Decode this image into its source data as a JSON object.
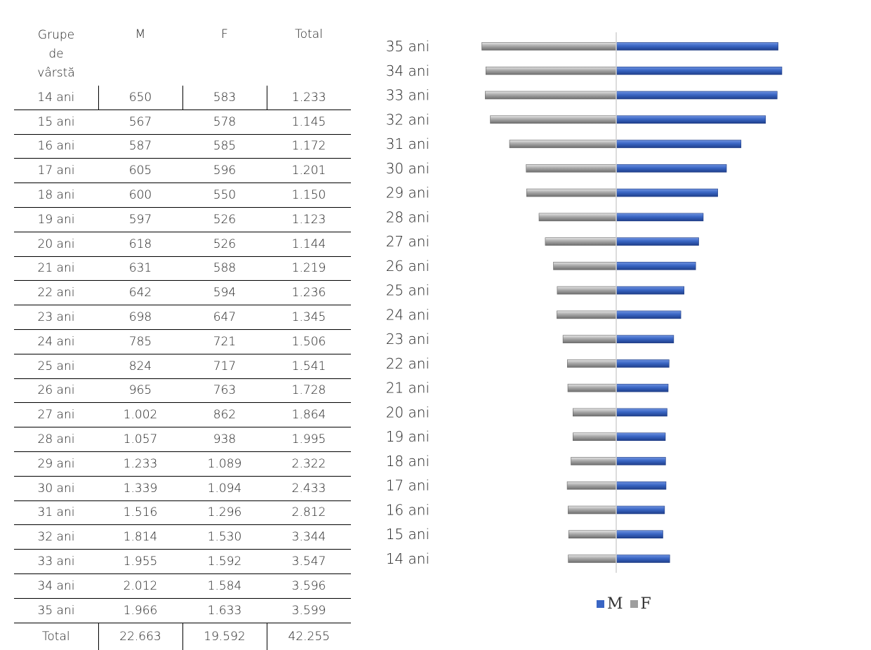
{
  "table": {
    "header": [
      "Grupe de vârstă",
      "M",
      "F",
      "Total"
    ],
    "header_first_lines": [
      "Grupe",
      "de",
      "vârstă"
    ],
    "rows": [
      [
        "14 ani",
        "650",
        "583",
        "1.233"
      ],
      [
        "15 ani",
        "567",
        "578",
        "1.145"
      ],
      [
        "16 ani",
        "587",
        "585",
        "1.172"
      ],
      [
        "17 ani",
        "605",
        "596",
        "1.201"
      ],
      [
        "18 ani",
        "600",
        "550",
        "1.150"
      ],
      [
        "19 ani",
        "597",
        "526",
        "1.123"
      ],
      [
        "20 ani",
        "618",
        "526",
        "1.144"
      ],
      [
        "21 ani",
        "631",
        "588",
        "1.219"
      ],
      [
        "22 ani",
        "642",
        "594",
        "1.236"
      ],
      [
        "23 ani",
        "698",
        "647",
        "1.345"
      ],
      [
        "24 ani",
        "785",
        "721",
        "1.506"
      ],
      [
        "25 ani",
        "824",
        "717",
        "1.541"
      ],
      [
        "26 ani",
        "965",
        "763",
        "1.728"
      ],
      [
        "27 ani",
        "1.002",
        "862",
        "1.864"
      ],
      [
        "28 ani",
        "1.057",
        "938",
        "1.995"
      ],
      [
        "29 ani",
        "1.233",
        "1.089",
        "2.322"
      ],
      [
        "30 ani",
        "1.339",
        "1.094",
        "2.433"
      ],
      [
        "31 ani",
        "1.516",
        "1.296",
        "2.812"
      ],
      [
        "32 ani",
        "1.814",
        "1.530",
        "3.344"
      ],
      [
        "33 ani",
        "1.955",
        "1.592",
        "3.547"
      ],
      [
        "34 ani",
        "2.012",
        "1.584",
        "3.596"
      ],
      [
        "35 ani",
        "1.966",
        "1.633",
        "3.599"
      ]
    ],
    "total": [
      "Total",
      "22.663",
      "19.592",
      "42.255"
    ]
  },
  "chart_data": {
    "type": "bar",
    "orientation": "horizontal-diverging",
    "categories": [
      "14 ani",
      "15 ani",
      "16 ani",
      "17 ani",
      "18 ani",
      "19 ani",
      "20 ani",
      "21 ani",
      "22 ani",
      "23 ani",
      "24 ani",
      "25 ani",
      "26 ani",
      "27 ani",
      "28 ani",
      "29 ani",
      "30 ani",
      "31 ani",
      "32 ani",
      "33 ani",
      "34 ani",
      "35 ani"
    ],
    "series": [
      {
        "name": "M",
        "side": "right",
        "color": "#3a66c4",
        "values": [
          650,
          567,
          587,
          605,
          600,
          597,
          618,
          631,
          642,
          698,
          785,
          824,
          965,
          1002,
          1057,
          1233,
          1339,
          1516,
          1814,
          1955,
          2012,
          1966
        ]
      },
      {
        "name": "F",
        "side": "left",
        "color": "#9e9e9e",
        "values": [
          583,
          578,
          585,
          596,
          550,
          526,
          526,
          588,
          594,
          647,
          721,
          717,
          763,
          862,
          938,
          1089,
          1094,
          1296,
          1530,
          1592,
          1584,
          1633
        ]
      }
    ],
    "legend": {
      "position": "bottom",
      "items": [
        "M",
        "F"
      ]
    },
    "grid": false,
    "axis_labels_visible": false
  }
}
